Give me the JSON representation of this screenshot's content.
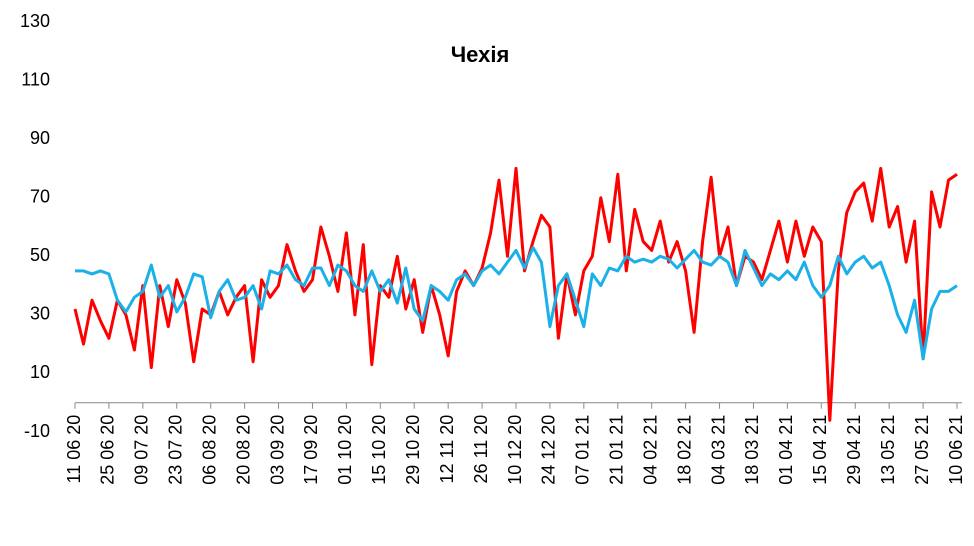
{
  "chart_data": {
    "type": "line",
    "title": "Чехія",
    "categories": [
      "11 06 20",
      null,
      null,
      null,
      "25 06 20",
      null,
      null,
      null,
      "09 07 20",
      null,
      null,
      null,
      "23 07 20",
      null,
      null,
      null,
      "06 08 20",
      null,
      null,
      null,
      "20 08 20",
      null,
      null,
      null,
      "03 09 20",
      null,
      null,
      null,
      "17 09 20",
      null,
      null,
      null,
      "01 10 20",
      null,
      null,
      null,
      "15 10 20",
      null,
      null,
      null,
      "29 10 20",
      null,
      null,
      null,
      "12 11 20",
      null,
      null,
      null,
      "26 11 20",
      null,
      null,
      null,
      "10 12 20",
      null,
      null,
      null,
      "24 12 20",
      null,
      null,
      null,
      "07 01 21",
      null,
      null,
      null,
      "21 01 21",
      null,
      null,
      null,
      "04 02 21",
      null,
      null,
      null,
      "18 02 21",
      null,
      null,
      null,
      "04 03 21",
      null,
      null,
      null,
      "18 03 21",
      null,
      null,
      null,
      "01 04 21",
      null,
      null,
      null,
      "15 04 21",
      null,
      null,
      null,
      "29 04 21",
      null,
      null,
      null,
      "13 05 21",
      null,
      null,
      null,
      "27 05 21",
      null,
      null,
      null,
      "10 06 21"
    ],
    "series": [
      {
        "color": "#ff0000",
        "values": [
          32,
          20,
          35,
          28,
          22,
          35,
          30,
          18,
          40,
          12,
          40,
          26,
          42,
          34,
          14,
          32,
          30,
          38,
          30,
          36,
          40,
          14,
          42,
          36,
          40,
          54,
          45,
          38,
          42,
          60,
          50,
          38,
          58,
          30,
          54,
          13,
          40,
          36,
          50,
          32,
          42,
          24,
          40,
          30,
          16,
          38,
          45,
          40,
          46,
          58,
          76,
          50,
          80,
          45,
          55,
          64,
          60,
          22,
          44,
          30,
          45,
          50,
          70,
          55,
          78,
          45,
          66,
          55,
          52,
          62,
          48,
          55,
          45,
          24,
          55,
          77,
          50,
          60,
          40,
          50,
          48,
          42,
          52,
          62,
          48,
          62,
          50,
          60,
          55,
          -6,
          45,
          65,
          72,
          75,
          62,
          80,
          60,
          67,
          48,
          62,
          15,
          72,
          60,
          76,
          78
        ]
      },
      {
        "color": "#1ab0e8",
        "values": [
          45,
          45,
          44,
          45,
          44,
          35,
          31,
          36,
          38,
          47,
          36,
          40,
          31,
          36,
          44,
          43,
          29,
          38,
          42,
          35,
          36,
          40,
          32,
          45,
          44,
          47,
          42,
          40,
          46,
          46,
          40,
          47,
          45,
          40,
          38,
          45,
          38,
          42,
          34,
          46,
          32,
          28,
          40,
          38,
          35,
          42,
          44,
          40,
          45,
          47,
          44,
          48,
          52,
          46,
          53,
          48,
          26,
          40,
          44,
          35,
          26,
          44,
          40,
          46,
          45,
          50,
          48,
          49,
          48,
          50,
          49,
          46,
          49,
          52,
          48,
          47,
          50,
          48,
          40,
          52,
          46,
          40,
          44,
          42,
          45,
          42,
          48,
          40,
          36,
          40,
          50,
          44,
          48,
          50,
          46,
          48,
          40,
          30,
          24,
          35,
          15,
          32,
          38,
          38,
          40
        ]
      }
    ],
    "ylim": [
      -10,
      130
    ],
    "yticks": [
      130,
      110,
      90,
      70,
      50,
      30,
      10,
      -10
    ],
    "grid": false
  }
}
